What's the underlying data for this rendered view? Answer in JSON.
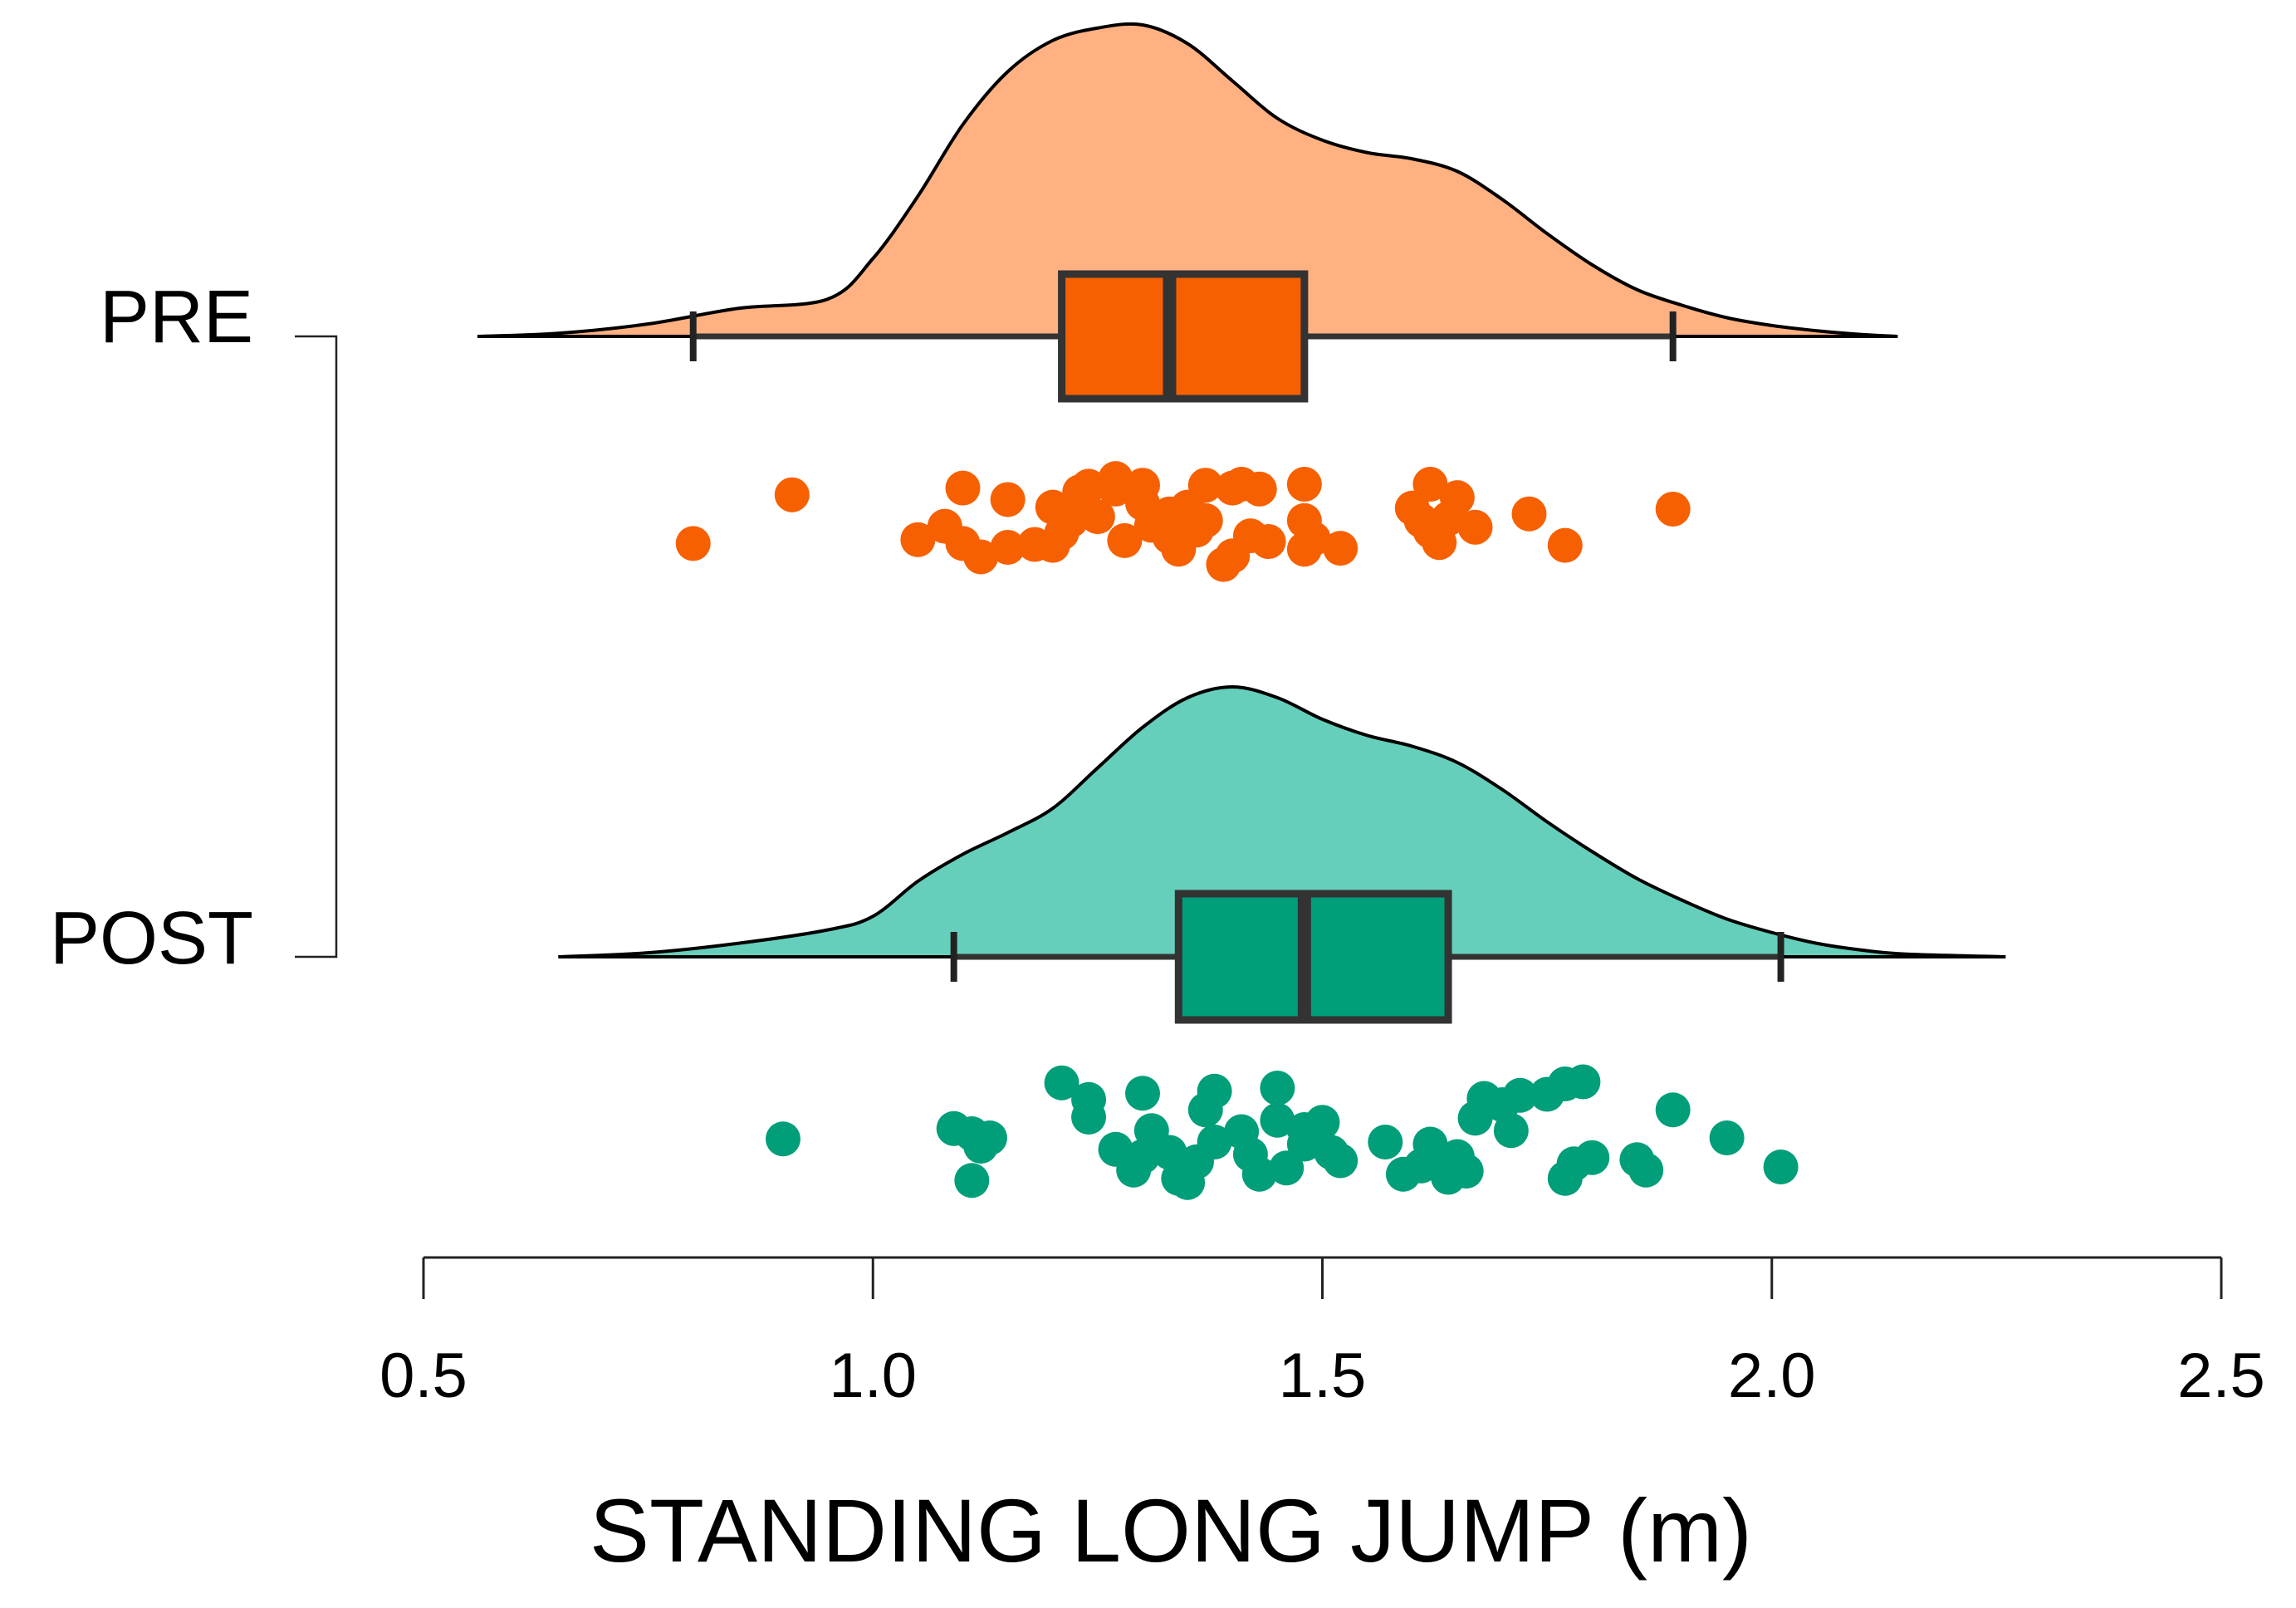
{
  "chart_data": {
    "type": "raincloud",
    "title": "",
    "xlabel": "STANDING LONG JUMP (m)",
    "ylabel": "",
    "xlim": [
      0.5,
      2.5
    ],
    "x_ticks": [
      "0.5",
      "1.0",
      "1.5",
      "2.0",
      "2.5"
    ],
    "x_tick_values": [
      0.5,
      1.0,
      1.5,
      2.0,
      2.5
    ],
    "categories": [
      "PRE",
      "POST"
    ],
    "series": [
      {
        "name": "PRE",
        "fill_color": "#FFB182",
        "box_color": "#F76000",
        "point_color": "#F76000",
        "box": {
          "whisker_low": 0.8,
          "q1": 1.21,
          "median": 1.33,
          "q3": 1.48,
          "whisker_high": 1.89
        },
        "density_range": [
          0.56,
          2.14
        ],
        "density": [
          [
            0.56,
            0.0
          ],
          [
            0.65,
            0.01
          ],
          [
            0.75,
            0.04
          ],
          [
            0.85,
            0.09
          ],
          [
            0.95,
            0.12
          ],
          [
            1.0,
            0.25
          ],
          [
            1.05,
            0.45
          ],
          [
            1.1,
            0.68
          ],
          [
            1.15,
            0.85
          ],
          [
            1.2,
            0.95
          ],
          [
            1.25,
            0.99
          ],
          [
            1.3,
            1.0
          ],
          [
            1.35,
            0.94
          ],
          [
            1.4,
            0.82
          ],
          [
            1.45,
            0.7
          ],
          [
            1.5,
            0.63
          ],
          [
            1.55,
            0.59
          ],
          [
            1.6,
            0.57
          ],
          [
            1.65,
            0.53
          ],
          [
            1.7,
            0.44
          ],
          [
            1.75,
            0.33
          ],
          [
            1.8,
            0.23
          ],
          [
            1.85,
            0.15
          ],
          [
            1.9,
            0.1
          ],
          [
            1.95,
            0.06
          ],
          [
            2.0,
            0.035
          ],
          [
            2.05,
            0.018
          ],
          [
            2.1,
            0.006
          ],
          [
            2.14,
            0.0
          ]
        ],
        "points": [
          [
            0.8,
            0.31
          ],
          [
            0.91,
            0.82
          ],
          [
            1.05,
            0.35
          ],
          [
            1.08,
            0.49
          ],
          [
            1.1,
            0.31
          ],
          [
            1.1,
            0.89
          ],
          [
            1.12,
            0.17
          ],
          [
            1.15,
            0.27
          ],
          [
            1.15,
            0.77
          ],
          [
            1.18,
            0.3
          ],
          [
            1.2,
            0.29
          ],
          [
            1.2,
            0.69
          ],
          [
            1.21,
            0.42
          ],
          [
            1.22,
            0.55
          ],
          [
            1.23,
            0.85
          ],
          [
            1.24,
            0.91
          ],
          [
            1.25,
            0.59
          ],
          [
            1.27,
            0.99
          ],
          [
            1.27,
            0.88
          ],
          [
            1.28,
            0.34
          ],
          [
            1.3,
            0.73
          ],
          [
            1.3,
            0.92
          ],
          [
            1.31,
            0.5
          ],
          [
            1.33,
            0.38
          ],
          [
            1.33,
            0.62
          ],
          [
            1.34,
            0.25
          ],
          [
            1.35,
            0.52
          ],
          [
            1.35,
            0.69
          ],
          [
            1.36,
            0.45
          ],
          [
            1.37,
            0.55
          ],
          [
            1.37,
            0.92
          ],
          [
            1.39,
            0.09
          ],
          [
            1.4,
            0.18
          ],
          [
            1.4,
            0.89
          ],
          [
            1.41,
            0.93
          ],
          [
            1.42,
            0.39
          ],
          [
            1.43,
            0.88
          ],
          [
            1.44,
            0.33
          ],
          [
            1.48,
            0.25
          ],
          [
            1.48,
            0.55
          ],
          [
            1.48,
            0.93
          ],
          [
            1.49,
            0.36
          ],
          [
            1.52,
            0.26
          ],
          [
            1.6,
            0.68
          ],
          [
            1.61,
            0.55
          ],
          [
            1.62,
            0.44
          ],
          [
            1.62,
            0.93
          ],
          [
            1.63,
            0.32
          ],
          [
            1.64,
            0.57
          ],
          [
            1.65,
            0.79
          ],
          [
            1.67,
            0.48
          ],
          [
            1.73,
            0.62
          ],
          [
            1.77,
            0.29
          ],
          [
            1.89,
            0.67
          ]
        ]
      },
      {
        "name": "POST",
        "fill_color": "#66CFBB",
        "box_color": "#009E79",
        "point_color": "#009E79",
        "box": {
          "whisker_low": 1.09,
          "q1": 1.34,
          "median": 1.48,
          "q3": 1.64,
          "whisker_high": 2.01
        },
        "density_range": [
          0.65,
          2.26
        ],
        "density": [
          [
            0.65,
            0.0
          ],
          [
            0.75,
            0.015
          ],
          [
            0.85,
            0.05
          ],
          [
            0.95,
            0.1
          ],
          [
            1.0,
            0.15
          ],
          [
            1.05,
            0.28
          ],
          [
            1.1,
            0.38
          ],
          [
            1.15,
            0.46
          ],
          [
            1.2,
            0.55
          ],
          [
            1.25,
            0.7
          ],
          [
            1.3,
            0.85
          ],
          [
            1.35,
            0.96
          ],
          [
            1.4,
            1.0
          ],
          [
            1.45,
            0.96
          ],
          [
            1.5,
            0.88
          ],
          [
            1.55,
            0.82
          ],
          [
            1.6,
            0.78
          ],
          [
            1.65,
            0.72
          ],
          [
            1.7,
            0.62
          ],
          [
            1.75,
            0.5
          ],
          [
            1.8,
            0.39
          ],
          [
            1.85,
            0.29
          ],
          [
            1.9,
            0.21
          ],
          [
            1.95,
            0.14
          ],
          [
            2.0,
            0.09
          ],
          [
            2.05,
            0.05
          ],
          [
            2.1,
            0.025
          ],
          [
            2.15,
            0.01
          ],
          [
            2.26,
            0.0
          ]
        ],
        "points": [
          [
            0.9,
            0.43
          ],
          [
            1.09,
            0.53
          ],
          [
            1.11,
            0.48
          ],
          [
            1.11,
            0.03
          ],
          [
            1.12,
            0.36
          ],
          [
            1.13,
            0.44
          ],
          [
            1.21,
            0.97
          ],
          [
            1.24,
            0.64
          ],
          [
            1.24,
            0.81
          ],
          [
            1.27,
            0.33
          ],
          [
            1.29,
            0.13
          ],
          [
            1.3,
            0.87
          ],
          [
            1.3,
            0.26
          ],
          [
            1.31,
            0.51
          ],
          [
            1.33,
            0.3
          ],
          [
            1.34,
            0.05
          ],
          [
            1.35,
            0.01
          ],
          [
            1.36,
            0.21
          ],
          [
            1.37,
            0.71
          ],
          [
            1.38,
            0.89
          ],
          [
            1.38,
            0.4
          ],
          [
            1.41,
            0.5
          ],
          [
            1.42,
            0.28
          ],
          [
            1.43,
            0.09
          ],
          [
            1.45,
            0.61
          ],
          [
            1.45,
            0.92
          ],
          [
            1.46,
            0.15
          ],
          [
            1.48,
            0.52
          ],
          [
            1.48,
            0.38
          ],
          [
            1.5,
            0.59
          ],
          [
            1.51,
            0.3
          ],
          [
            1.52,
            0.22
          ],
          [
            1.57,
            0.4
          ],
          [
            1.59,
            0.09
          ],
          [
            1.61,
            0.17
          ],
          [
            1.62,
            0.38
          ],
          [
            1.63,
            0.21
          ],
          [
            1.64,
            0.06
          ],
          [
            1.65,
            0.26
          ],
          [
            1.66,
            0.12
          ],
          [
            1.67,
            0.63
          ],
          [
            1.68,
            0.82
          ],
          [
            1.7,
            0.76
          ],
          [
            1.71,
            0.51
          ],
          [
            1.72,
            0.85
          ],
          [
            1.75,
            0.86
          ],
          [
            1.77,
            0.96
          ],
          [
            1.77,
            0.05
          ],
          [
            1.78,
            0.19
          ],
          [
            1.79,
            0.98
          ],
          [
            1.8,
            0.25
          ],
          [
            1.85,
            0.23
          ],
          [
            1.86,
            0.13
          ],
          [
            1.89,
            0.71
          ],
          [
            1.95,
            0.44
          ],
          [
            2.01,
            0.16
          ]
        ]
      }
    ]
  }
}
